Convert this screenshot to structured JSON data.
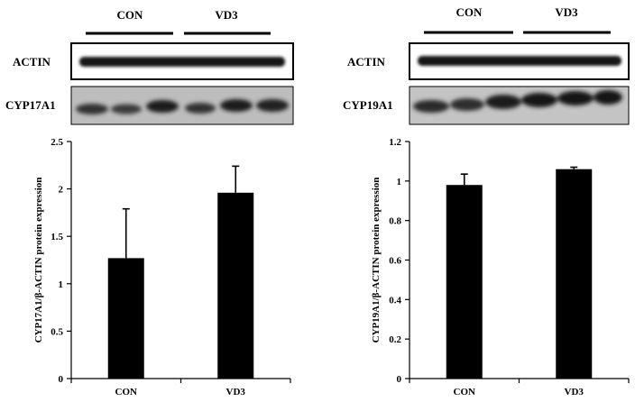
{
  "panels": [
    {
      "group_labels": [
        "CON",
        "VD3"
      ],
      "blot_labels": [
        "ACTIN",
        "CYP17A1"
      ]
    },
    {
      "group_labels": [
        "CON",
        "VD3"
      ],
      "blot_labels": [
        "ACTIN",
        "CYP19A1"
      ]
    }
  ],
  "chart_data": [
    {
      "type": "bar",
      "categories": [
        "CON",
        "VD3"
      ],
      "values": [
        1.27,
        1.96
      ],
      "errors": [
        0.52,
        0.28
      ],
      "ylabel": "CYP17A1/β-ACTIN protein expression",
      "ylim": [
        0,
        2.5
      ],
      "yticks": [
        "0",
        "0.5",
        "1",
        "1.5",
        "2",
        "2.5"
      ],
      "bar_color": "#000000",
      "grid": false
    },
    {
      "type": "bar",
      "categories": [
        "CON",
        "VD3"
      ],
      "values": [
        0.98,
        1.06
      ],
      "errors": [
        0.055,
        0.01
      ],
      "ylabel": "CYP19A1/β-ACTIN protein expression",
      "ylim": [
        0,
        1.2
      ],
      "yticks": [
        "0",
        "0.2",
        "0.4",
        "0.6",
        "0.8",
        "1",
        "1.2"
      ],
      "bar_color": "#000000",
      "grid": false
    }
  ]
}
